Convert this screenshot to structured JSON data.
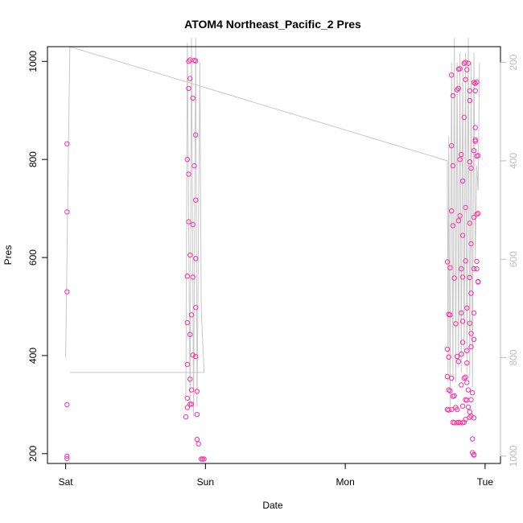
{
  "chart_data": {
    "type": "scatter",
    "title": "ATOM4 Northeast_Pacific_2 Pres",
    "xlabel": "Date",
    "ylabel": "Pres",
    "x_ticks": [
      "Sat",
      "Sun",
      "Mon",
      "Tue"
    ],
    "x_range_days": [
      -0.13,
      3.11
    ],
    "ylim": [
      180,
      1030
    ],
    "y_ticks": [
      200,
      400,
      600,
      800,
      1000
    ],
    "secondary_axis": {
      "ticks": [
        200,
        400,
        600,
        800,
        1000
      ],
      "range": [
        168,
        1015
      ],
      "direction": "reversed",
      "color": "#bdbdbd"
    },
    "colors": {
      "points": "#ff2fa0",
      "line": "#c8c8c8",
      "axis": "#000000"
    },
    "series": [
      {
        "type": "points",
        "day": 0,
        "points": [
          [
            0.01,
            832
          ],
          [
            0.01,
            693
          ],
          [
            0.01,
            530
          ],
          [
            0.01,
            300
          ],
          [
            0.01,
            195
          ],
          [
            0.01,
            190
          ]
        ]
      },
      {
        "type": "points",
        "day": 1,
        "points": [
          [
            0.88,
            1000
          ],
          [
            0.89,
            1003
          ],
          [
            0.92,
            1002
          ],
          [
            0.93,
            1001
          ],
          [
            0.89,
            965
          ],
          [
            0.88,
            945
          ],
          [
            0.91,
            925
          ],
          [
            0.93,
            850
          ],
          [
            0.87,
            800
          ],
          [
            0.92,
            787
          ],
          [
            0.88,
            770
          ],
          [
            0.93,
            717
          ],
          [
            0.88,
            673
          ],
          [
            0.91,
            667
          ],
          [
            0.89,
            605
          ],
          [
            0.93,
            598
          ],
          [
            0.87,
            562
          ],
          [
            0.91,
            560
          ],
          [
            0.93,
            498
          ],
          [
            0.9,
            483
          ],
          [
            0.87,
            467
          ],
          [
            0.89,
            443
          ],
          [
            0.91,
            401
          ],
          [
            0.93,
            398
          ],
          [
            0.87,
            382
          ],
          [
            0.89,
            352
          ],
          [
            0.9,
            330
          ],
          [
            0.94,
            327
          ],
          [
            0.87,
            313
          ],
          [
            0.89,
            301
          ],
          [
            0.9,
            301
          ],
          [
            0.87,
            294
          ],
          [
            0.94,
            280
          ],
          [
            0.86,
            275
          ],
          [
            0.94,
            229
          ],
          [
            0.95,
            220
          ],
          [
            0.97,
            189
          ],
          [
            0.98,
            189
          ],
          [
            0.99,
            189
          ]
        ]
      },
      {
        "type": "points",
        "day": 3,
        "points": [
          [
            2.73,
            591
          ],
          [
            2.74,
            484
          ],
          [
            2.75,
            483
          ],
          [
            2.73,
            413
          ],
          [
            2.74,
            397
          ],
          [
            2.75,
            579
          ],
          [
            2.76,
            972
          ],
          [
            2.77,
            930
          ],
          [
            2.76,
            828
          ],
          [
            2.77,
            787
          ],
          [
            2.76,
            695
          ],
          [
            2.77,
            665
          ],
          [
            2.78,
            558
          ],
          [
            2.79,
            465
          ],
          [
            2.8,
            398
          ],
          [
            2.81,
            388
          ],
          [
            2.8,
            942
          ],
          [
            2.81,
            945
          ],
          [
            2.81,
            984
          ],
          [
            2.82,
            985
          ],
          [
            2.82,
            800
          ],
          [
            2.83,
            810
          ],
          [
            2.81,
            675
          ],
          [
            2.82,
            685
          ],
          [
            2.84,
            756
          ],
          [
            2.84,
            645
          ],
          [
            2.83,
            577
          ],
          [
            2.84,
            560
          ],
          [
            2.83,
            487
          ],
          [
            2.84,
            470
          ],
          [
            2.83,
            403
          ],
          [
            2.84,
            427
          ],
          [
            2.85,
            886
          ],
          [
            2.85,
            996
          ],
          [
            2.86,
            998
          ],
          [
            2.86,
            963
          ],
          [
            2.87,
            983
          ],
          [
            2.86,
            702
          ],
          [
            2.86,
            593
          ],
          [
            2.87,
            497
          ],
          [
            2.87,
            410
          ],
          [
            2.87,
            385
          ],
          [
            2.88,
            996
          ],
          [
            2.89,
            940
          ],
          [
            2.89,
            920
          ],
          [
            2.89,
            795
          ],
          [
            2.9,
            782
          ],
          [
            2.89,
            670
          ],
          [
            2.9,
            628
          ],
          [
            2.89,
            559
          ],
          [
            2.9,
            527
          ],
          [
            2.89,
            466
          ],
          [
            2.9,
            445
          ],
          [
            2.9,
            418
          ],
          [
            2.92,
            957
          ],
          [
            2.93,
            955
          ],
          [
            2.94,
            958
          ],
          [
            2.93,
            940
          ],
          [
            2.93,
            865
          ],
          [
            2.93,
            840
          ],
          [
            2.93,
            837
          ],
          [
            2.92,
            818
          ],
          [
            2.94,
            807
          ],
          [
            2.95,
            808
          ],
          [
            2.92,
            682
          ],
          [
            2.94,
            688
          ],
          [
            2.95,
            690
          ],
          [
            2.92,
            577
          ],
          [
            2.94,
            592
          ],
          [
            2.94,
            577
          ],
          [
            2.95,
            550
          ],
          [
            2.95,
            551
          ],
          [
            2.92,
            487
          ],
          [
            2.92,
            433
          ],
          [
            2.73,
            357
          ],
          [
            2.74,
            330
          ],
          [
            2.75,
            328
          ],
          [
            2.76,
            354
          ],
          [
            2.77,
            317
          ],
          [
            2.78,
            318
          ],
          [
            2.79,
            294
          ],
          [
            2.8,
            290
          ],
          [
            2.73,
            290
          ],
          [
            2.74,
            289
          ],
          [
            2.76,
            290
          ],
          [
            2.77,
            264
          ],
          [
            2.78,
            263
          ],
          [
            2.8,
            263
          ],
          [
            2.81,
            264
          ],
          [
            2.82,
            263
          ],
          [
            2.84,
            263
          ],
          [
            2.85,
            264
          ],
          [
            2.85,
            354
          ],
          [
            2.86,
            310
          ],
          [
            2.87,
            309
          ],
          [
            2.88,
            295
          ],
          [
            2.89,
            285
          ],
          [
            2.89,
            274
          ],
          [
            2.9,
            277
          ],
          [
            2.84,
            297
          ],
          [
            2.83,
            340
          ],
          [
            2.86,
            356
          ],
          [
            2.87,
            345
          ],
          [
            2.88,
            330
          ],
          [
            2.91,
            230
          ],
          [
            2.91,
            202
          ],
          [
            2.92,
            197
          ],
          [
            2.92,
            198
          ],
          [
            2.9,
            310
          ],
          [
            2.91,
            324
          ],
          [
            2.92,
            273
          ],
          [
            2.86,
            270
          ]
        ]
      },
      {
        "type": "line",
        "axis": "secondary",
        "points": [
          [
            0.0,
            800
          ],
          [
            0.03,
            168
          ],
          [
            2.73,
            400
          ],
          [
            2.735,
            850
          ],
          [
            2.74,
            350
          ],
          [
            2.75,
            900
          ],
          [
            2.76,
            200
          ],
          [
            2.77,
            850
          ],
          [
            2.78,
            150
          ],
          [
            2.79,
            850
          ],
          [
            2.8,
            200
          ],
          [
            2.81,
            820
          ],
          [
            2.82,
            180
          ],
          [
            2.83,
            830
          ],
          [
            2.84,
            200
          ],
          [
            2.85,
            800
          ],
          [
            2.86,
            180
          ],
          [
            2.87,
            830
          ],
          [
            2.88,
            150
          ],
          [
            2.89,
            840
          ],
          [
            2.9,
            200
          ],
          [
            2.91,
            860
          ],
          [
            2.92,
            180
          ],
          [
            2.93,
            600
          ],
          [
            2.94,
            410
          ],
          [
            2.95,
            460
          ],
          [
            2.96,
            200
          ]
        ]
      },
      {
        "type": "line",
        "axis": "secondary",
        "points": [
          [
            0.03,
            830
          ],
          [
            0.99,
            830
          ],
          [
            0.97,
            700
          ],
          [
            0.96,
            200
          ],
          [
            0.94,
            900
          ],
          [
            0.93,
            150
          ],
          [
            0.915,
            920
          ],
          [
            0.9,
            150
          ],
          [
            0.89,
            900
          ],
          [
            0.87,
            160
          ],
          [
            0.86,
            880
          ]
        ]
      }
    ]
  }
}
